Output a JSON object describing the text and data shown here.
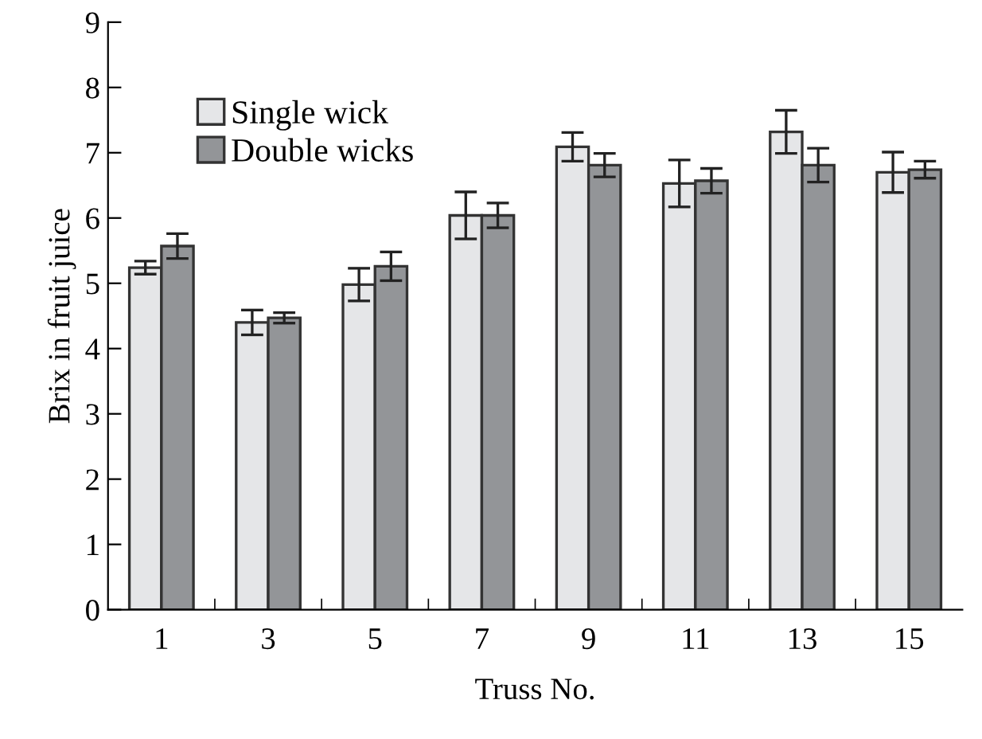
{
  "chart_data": {
    "type": "bar",
    "xlabel": "Truss No.",
    "ylabel": "Brix in fruit juice",
    "categories": [
      "1",
      "3",
      "5",
      "7",
      "9",
      "11",
      "13",
      "15"
    ],
    "series": [
      {
        "name": "Single wick",
        "color": "#e5e6e8",
        "values": [
          5.24,
          4.4,
          4.98,
          6.04,
          7.09,
          6.53,
          7.32,
          6.7
        ],
        "errors": [
          0.1,
          0.19,
          0.25,
          0.36,
          0.22,
          0.36,
          0.33,
          0.31
        ]
      },
      {
        "name": "Double wicks",
        "color": "#939598",
        "values": [
          5.57,
          4.47,
          5.26,
          6.04,
          6.81,
          6.57,
          6.81,
          6.74
        ],
        "errors": [
          0.19,
          0.08,
          0.22,
          0.19,
          0.18,
          0.19,
          0.26,
          0.13
        ]
      }
    ],
    "ylim": [
      0,
      9
    ],
    "yticks": [
      0,
      1,
      2,
      3,
      4,
      5,
      6,
      7,
      8,
      9
    ],
    "grid": false,
    "legend": "top left"
  }
}
